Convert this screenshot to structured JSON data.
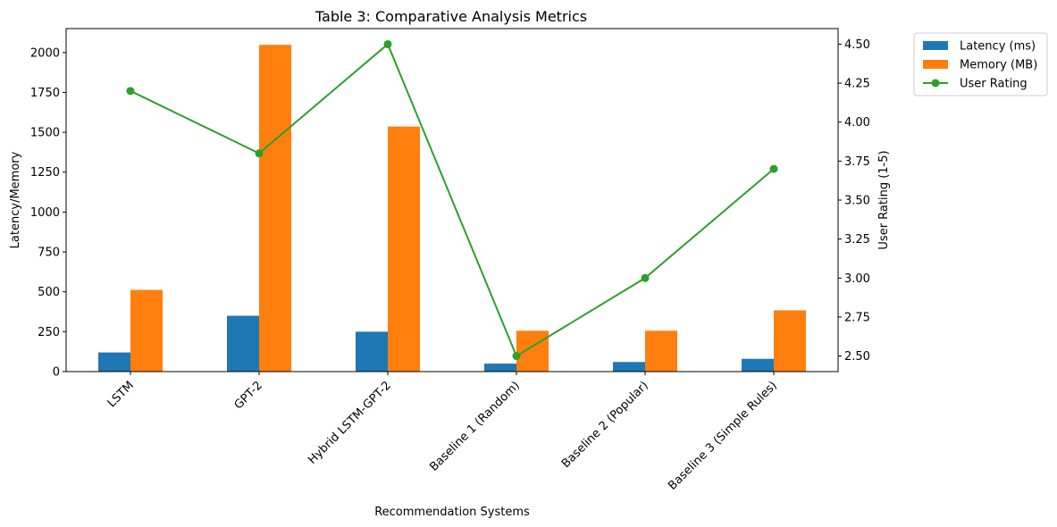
{
  "chart_data": {
    "type": "bar",
    "title": "Table 3: Comparative Analysis Metrics",
    "xlabel": "Recommendation Systems",
    "ylabel": "Latency/Memory",
    "y2label": "User Rating (1-5)",
    "categories": [
      "LSTM",
      "GPT-2",
      "Hybrid LSTM-GPT-2",
      "Baseline 1 (Random)",
      "Baseline 2 (Popular)",
      "Baseline 3 (Simple Rules)"
    ],
    "series": [
      {
        "name": "Latency (ms)",
        "type": "bar",
        "axis": "left",
        "color": "#1f77b4",
        "values": [
          120,
          350,
          250,
          50,
          60,
          80
        ]
      },
      {
        "name": "Memory (MB)",
        "type": "bar",
        "axis": "left",
        "color": "#ff7f0e",
        "values": [
          512,
          2048,
          1536,
          256,
          256,
          384
        ]
      },
      {
        "name": "User Rating",
        "type": "line",
        "axis": "right",
        "color": "#2ca02c",
        "values": [
          4.2,
          3.8,
          4.5,
          2.5,
          3.0,
          3.7
        ]
      }
    ],
    "ylim": [
      0,
      2150
    ],
    "yticks": [
      0,
      250,
      500,
      750,
      1000,
      1250,
      1500,
      1750,
      2000
    ],
    "ytick_labels": [
      "0",
      "250",
      "500",
      "750",
      "1000",
      "1250",
      "1500",
      "1750",
      "2000"
    ],
    "y2lim": [
      2.4,
      4.6
    ],
    "y2ticks": [
      2.5,
      2.75,
      3.0,
      3.25,
      3.5,
      3.75,
      4.0,
      4.25,
      4.5
    ],
    "y2tick_labels": [
      "2.50",
      "2.75",
      "3.00",
      "3.25",
      "3.50",
      "3.75",
      "4.00",
      "4.25",
      "4.50"
    ],
    "legend": {
      "placement": "outside-top-right",
      "entries": [
        {
          "label": "Latency (ms)",
          "kind": "patch",
          "color": "#1f77b4"
        },
        {
          "label": "Memory (MB)",
          "kind": "patch",
          "color": "#ff7f0e"
        },
        {
          "label": "User Rating",
          "kind": "line",
          "color": "#2ca02c"
        }
      ]
    }
  }
}
